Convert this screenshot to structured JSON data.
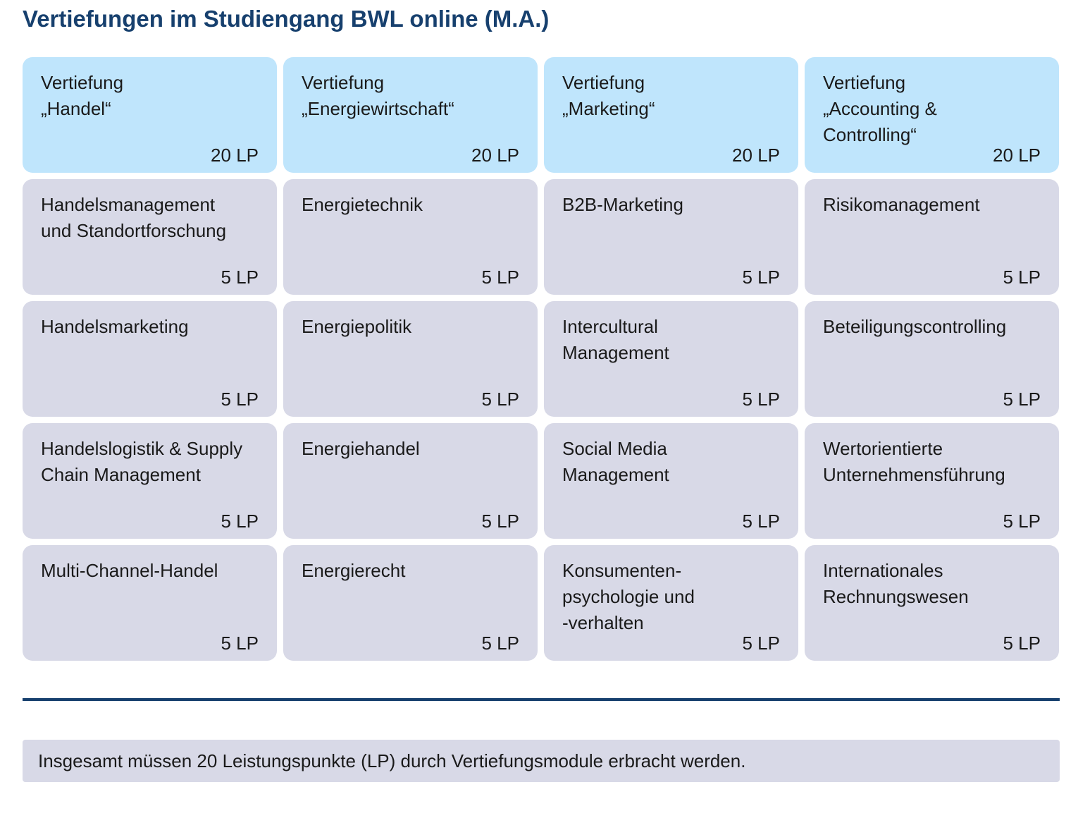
{
  "title": "Vertiefungen im Studiengang BWL online (M.A.)",
  "columns": [
    {
      "header": {
        "name": "Vertiefung\n„Handel“",
        "lp": "20 LP"
      },
      "modules": [
        {
          "name": "Handelsmanagement\nund Standortforschung",
          "lp": "5 LP"
        },
        {
          "name": "Handelsmarketing",
          "lp": "5 LP"
        },
        {
          "name": "Handelslogistik & Supply\nChain Management",
          "lp": "5 LP"
        },
        {
          "name": "Multi-Channel-Handel",
          "lp": "5 LP"
        }
      ]
    },
    {
      "header": {
        "name": "Vertiefung\n„Energiewirtschaft“",
        "lp": "20 LP"
      },
      "modules": [
        {
          "name": "Energietechnik",
          "lp": "5 LP"
        },
        {
          "name": "Energiepolitik",
          "lp": "5 LP"
        },
        {
          "name": "Energiehandel",
          "lp": "5 LP"
        },
        {
          "name": "Energierecht",
          "lp": "5 LP"
        }
      ]
    },
    {
      "header": {
        "name": "Vertiefung\n„Marketing“",
        "lp": "20 LP"
      },
      "modules": [
        {
          "name": "B2B-Marketing",
          "lp": "5 LP"
        },
        {
          "name": "Intercultural\nManagement",
          "lp": "5 LP"
        },
        {
          "name": "Social Media\nManagement",
          "lp": "5 LP"
        },
        {
          "name": "Konsumenten-\npsychologie und\n-verhalten",
          "lp": "5 LP"
        }
      ]
    },
    {
      "header": {
        "name": "Vertiefung\n„Accounting &\nControlling“",
        "lp": "20 LP"
      },
      "modules": [
        {
          "name": "Risikomanagement",
          "lp": "5 LP"
        },
        {
          "name": "Beteiligungscontrolling",
          "lp": "5 LP"
        },
        {
          "name": "Wertorientierte\nUnternehmensführung",
          "lp": "5 LP"
        },
        {
          "name": "Internationales\nRechnungswesen",
          "lp": "5 LP"
        }
      ]
    }
  ],
  "note": "Insgesamt müssen 20 Leistungspunkte (LP) durch Vertiefungsmodule erbracht werden.",
  "colors": {
    "title": "#17406e",
    "header_cell": "#bfe5fc",
    "module_cell": "#d8d9e7",
    "divider": "#17406e"
  }
}
